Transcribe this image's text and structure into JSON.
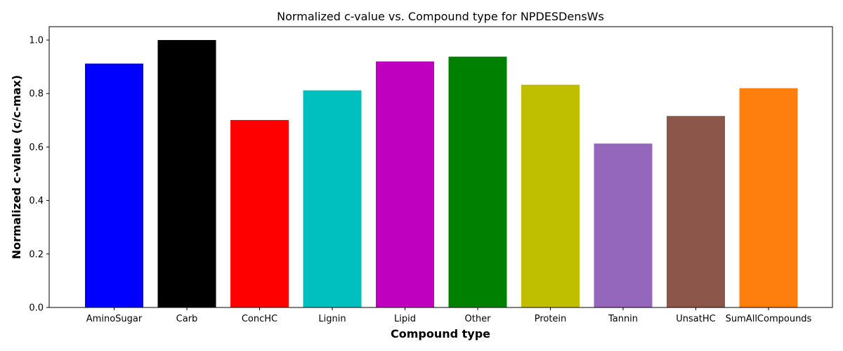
{
  "chart_data": {
    "type": "bar",
    "title": "Normalized c-value vs. Compound type for NPDESDensWs",
    "xlabel": "Compound type",
    "ylabel": "Normalized c-value (c/c-max)",
    "categories": [
      "AminoSugar",
      "Carb",
      "ConcHC",
      "Lignin",
      "Lipid",
      "Other",
      "Protein",
      "Tannin",
      "UnsatHC",
      "SumAllCompounds"
    ],
    "values": [
      0.912,
      1.0,
      0.701,
      0.812,
      0.92,
      0.938,
      0.833,
      0.613,
      0.716,
      0.82
    ],
    "colors": [
      "#0000ff",
      "#000000",
      "#ff0000",
      "#00bfbf",
      "#bf00bf",
      "#008000",
      "#bfbf00",
      "#9467bd",
      "#8c564b",
      "#ff7f0e"
    ],
    "ylim": [
      0,
      1.05
    ],
    "yticks": [
      0.0,
      0.2,
      0.4,
      0.6,
      0.8,
      1.0
    ],
    "ytick_labels": [
      "0.0",
      "0.2",
      "0.4",
      "0.6",
      "0.8",
      "1.0"
    ],
    "grid": false,
    "legend": "none"
  }
}
